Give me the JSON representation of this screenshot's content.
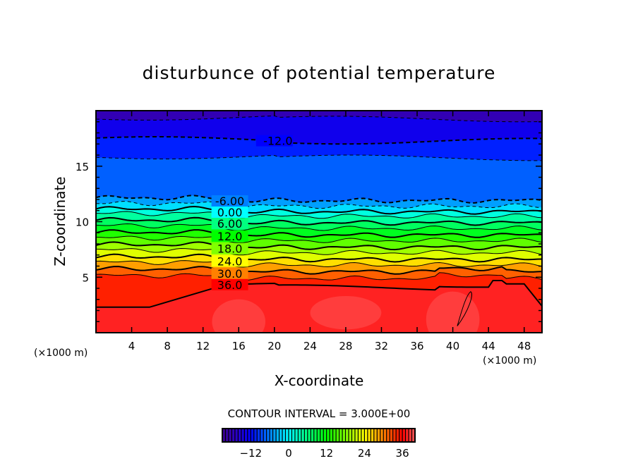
{
  "chart_data": {
    "type": "contour",
    "title": "disturbunce of potential temperature",
    "xlabel": "X-coordinate",
    "ylabel": "Z-coordinate",
    "x_unit_left": "(×1000 m)",
    "x_unit_right": "(×1000 m)",
    "xlim": [
      0,
      50
    ],
    "ylim": [
      0,
      20
    ],
    "xticks": [
      "4",
      "8",
      "12",
      "16",
      "20",
      "24",
      "28",
      "32",
      "36",
      "40",
      "44",
      "48"
    ],
    "xtick_values": [
      4,
      8,
      12,
      16,
      20,
      24,
      28,
      32,
      36,
      40,
      44,
      48
    ],
    "yticks": [
      "5",
      "10",
      "15"
    ],
    "ytick_values": [
      5,
      10,
      15
    ],
    "contour_interval_label": "CONTOUR INTERVAL = 3.000E+00",
    "contour_interval": 3,
    "contours": [
      {
        "level": -15,
        "z": 19.4,
        "label": ""
      },
      {
        "level": -12,
        "z": 17.4,
        "label": "-12.0"
      },
      {
        "level": -9,
        "z": 15.9,
        "label": ""
      },
      {
        "level": -6,
        "z": 11.9,
        "label": "-6.00"
      },
      {
        "level": -3,
        "z": 11.4,
        "label": ""
      },
      {
        "level": 0,
        "z": 10.9,
        "label": "0.00"
      },
      {
        "level": 3,
        "z": 10.5,
        "label": ""
      },
      {
        "level": 6,
        "z": 9.9,
        "label": "6.00"
      },
      {
        "level": 9,
        "z": 9.4,
        "label": ""
      },
      {
        "level": 12,
        "z": 8.8,
        "label": "12.0"
      },
      {
        "level": 15,
        "z": 8.3,
        "label": ""
      },
      {
        "level": 18,
        "z": 7.7,
        "label": "18.0"
      },
      {
        "level": 21,
        "z": 7.2,
        "label": ""
      },
      {
        "level": 24,
        "z": 6.6,
        "label": "24.0"
      },
      {
        "level": 27,
        "z": 6.1,
        "label": ""
      },
      {
        "level": 30,
        "z": 5.5,
        "label": "30.0"
      },
      {
        "level": 33,
        "z": 4.9,
        "label": ""
      },
      {
        "level": 36,
        "z": 4.2,
        "label": "36.0"
      }
    ],
    "surface_value": 39,
    "top_value": -18,
    "colorbar": {
      "min": -21,
      "max": 40,
      "ticks": [
        "-12",
        "0",
        "12",
        "24",
        "36"
      ],
      "tick_values": [
        -12,
        0,
        12,
        24,
        36
      ]
    }
  }
}
